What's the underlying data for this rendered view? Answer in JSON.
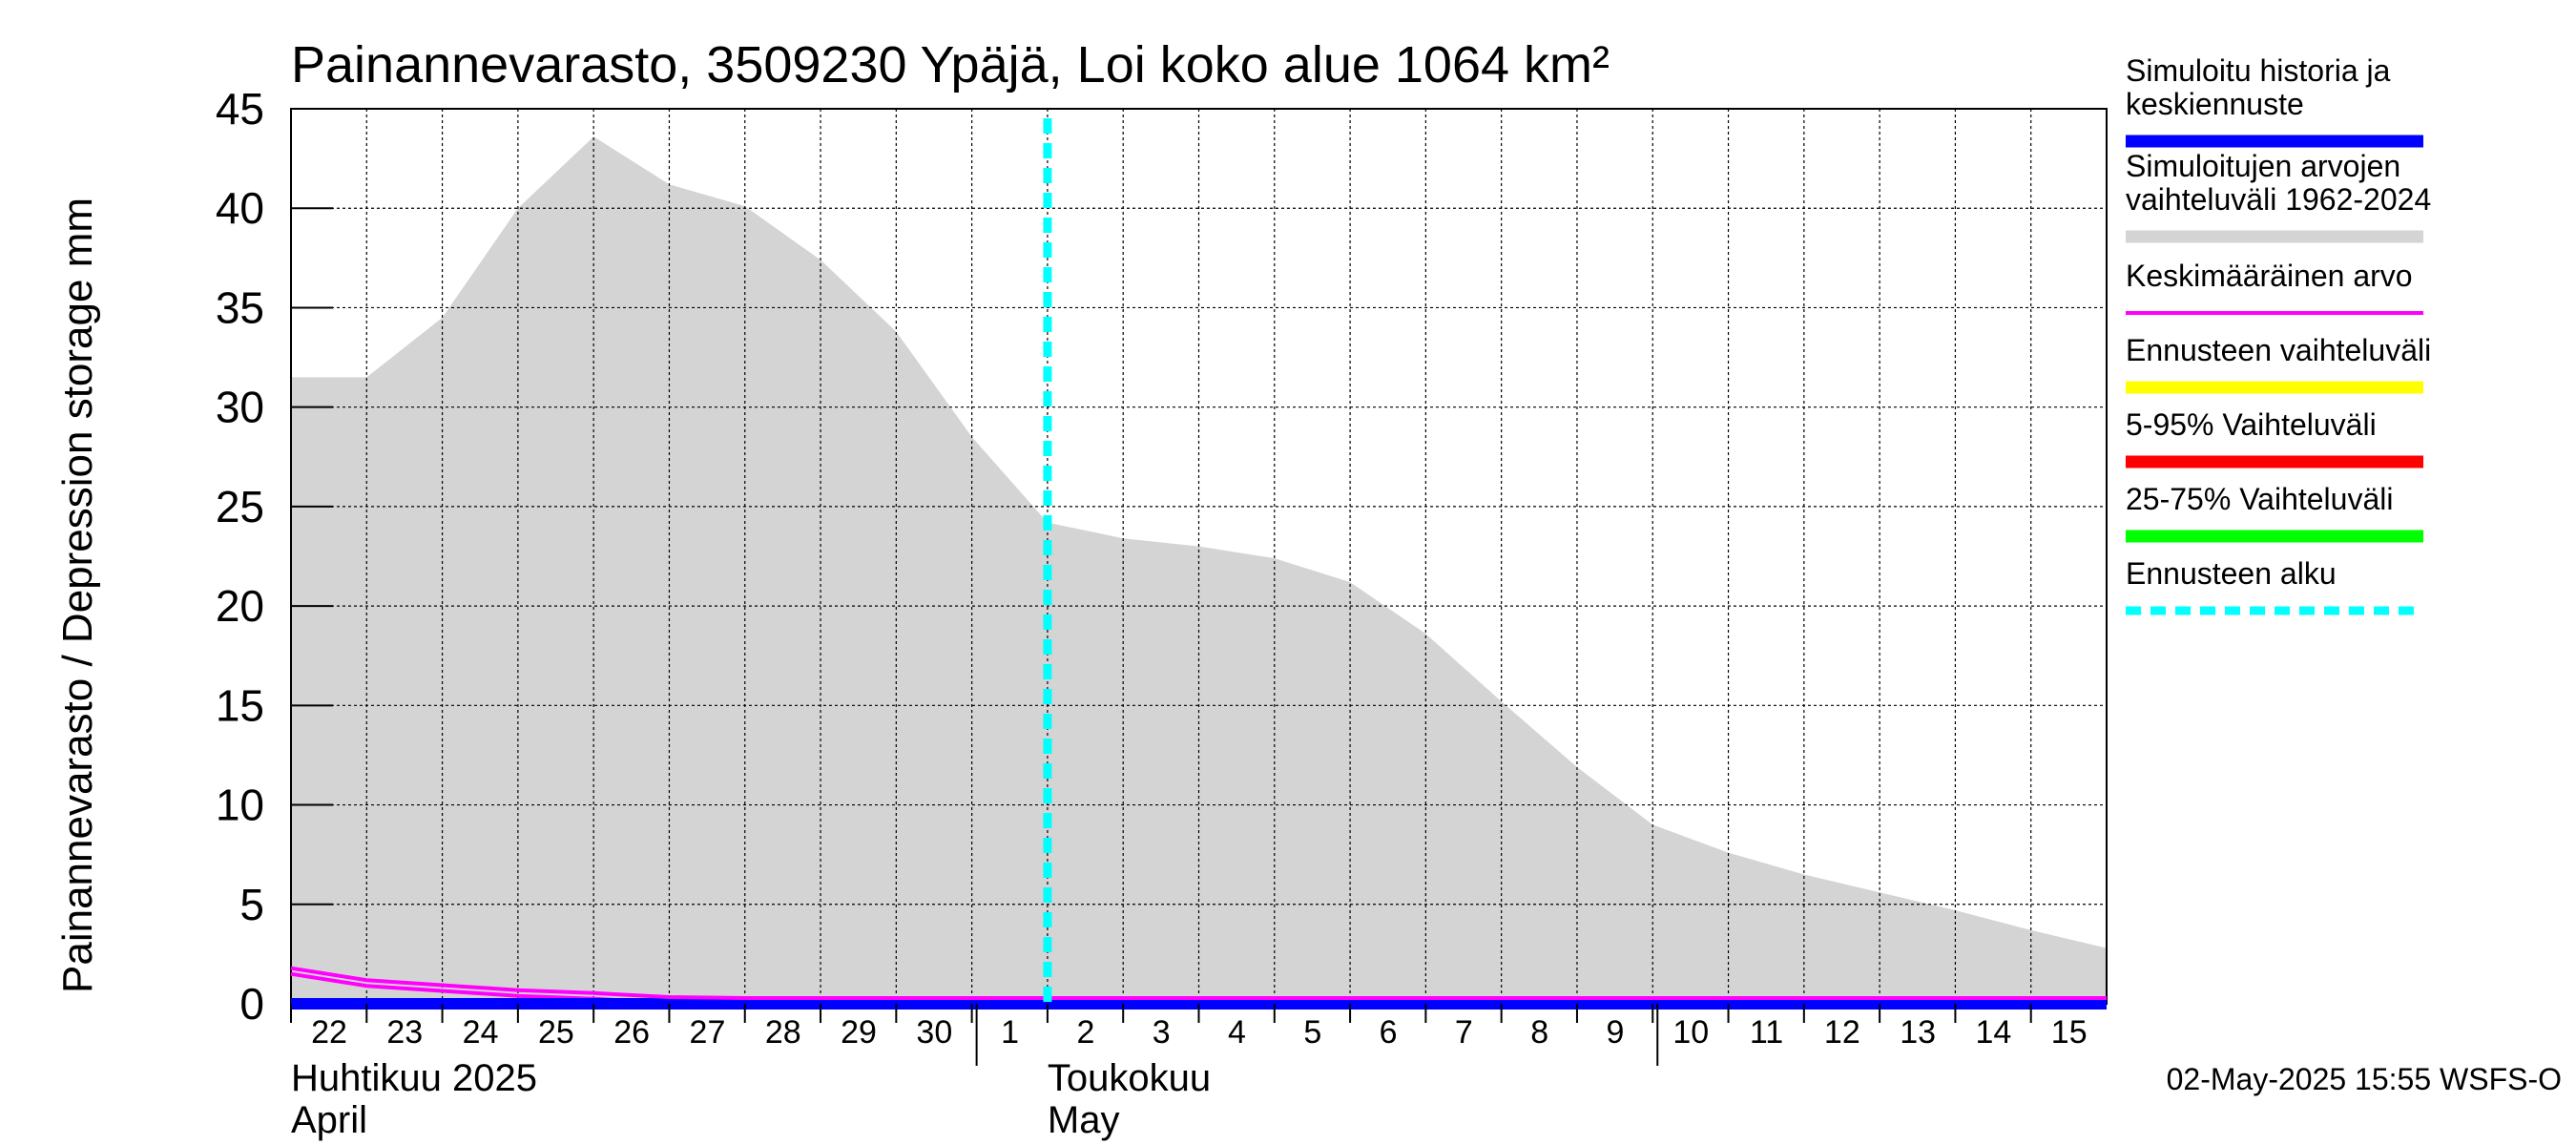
{
  "chart_data": {
    "type": "area",
    "title": "Painannevarasto, 3509230 Ypäjä, Loi koko alue 1064 km²",
    "ylabel": "Painannevarasto / Depression storage    mm",
    "ylim": [
      0,
      45
    ],
    "yticks": [
      0,
      5,
      10,
      15,
      20,
      25,
      30,
      35,
      40,
      45
    ],
    "x_range_days": [
      0,
      24
    ],
    "x_tick_labels": [
      "22",
      "23",
      "24",
      "25",
      "26",
      "27",
      "28",
      "29",
      "30",
      "1",
      "2",
      "3",
      "4",
      "5",
      "6",
      "7",
      "8",
      "9",
      "10",
      "11",
      "12",
      "13",
      "14",
      "15"
    ],
    "month_labels": [
      {
        "line1": "Huhtikuu  2025",
        "line2": "April",
        "day": 0
      },
      {
        "line1": "Toukokuu",
        "line2": "May",
        "day": 10
      }
    ],
    "month_separator_days": [
      9,
      18
    ],
    "grid": true,
    "legend_placement": "right",
    "forecast_start_day": 10.0,
    "series": [
      {
        "name": "Simuloitujen arvojen vaihteluväli 1962-2024",
        "kind": "range",
        "color": "#d4d4d4",
        "x": [
          0,
          1,
          2,
          3,
          4,
          5,
          6,
          7,
          8,
          9,
          10,
          11,
          12,
          13,
          14,
          15,
          16,
          17,
          18,
          19,
          20,
          21,
          22,
          23,
          24
        ],
        "upper": [
          31.5,
          31.5,
          34.5,
          40,
          43.6,
          41.2,
          40.1,
          37.4,
          33.8,
          28.5,
          24.2,
          23.4,
          23,
          22.4,
          21.2,
          18.6,
          15.2,
          11.9,
          9.0,
          7.6,
          6.5,
          5.6,
          4.7,
          3.7,
          2.8
        ],
        "lower": [
          0,
          0,
          0,
          0,
          0,
          0,
          0,
          0,
          0,
          0,
          0,
          0,
          0,
          0,
          0,
          0,
          0,
          0,
          0,
          0,
          0,
          0,
          0,
          0,
          0
        ]
      },
      {
        "name": "Keskimääräinen arvo",
        "kind": "line",
        "color": "#ff00ff",
        "x": [
          0,
          1,
          2,
          3,
          4,
          5,
          6,
          7,
          8,
          9,
          10,
          11,
          12,
          13,
          14,
          15,
          16,
          17,
          18,
          19,
          20,
          21,
          22,
          23,
          24
        ],
        "values": [
          1.5,
          0.9,
          0.65,
          0.4,
          0.25,
          0.05,
          0.0,
          0.0,
          0.0,
          0.0,
          0.0,
          0.0,
          0.0,
          0.0,
          0.0,
          0.0,
          0.0,
          0.0,
          0.0,
          0.0,
          0.0,
          0.0,
          0.0,
          0.0,
          0.0
        ]
      },
      {
        "name": "Simuloitu historia ja keskiennuste",
        "kind": "line",
        "color": "#0000ff",
        "x": [
          0,
          24
        ],
        "values": [
          0,
          0
        ]
      }
    ],
    "legend": [
      {
        "lines": [
          "Simuloitu historia ja",
          "keskiennuste"
        ],
        "color": "#0000ff",
        "style": "solid"
      },
      {
        "lines": [
          "Simuloitujen arvojen",
          "vaihteluväli 1962-2024"
        ],
        "color": "#d4d4d4",
        "style": "solid"
      },
      {
        "lines": [
          "Keskimääräinen arvo"
        ],
        "color": "#ff00ff",
        "style": "thin"
      },
      {
        "lines": [
          "Ennusteen vaihteluväli"
        ],
        "color": "#ffff00",
        "style": "solid"
      },
      {
        "lines": [
          "5-95% Vaihteluväli"
        ],
        "color": "#ff0000",
        "style": "solid"
      },
      {
        "lines": [
          "25-75% Vaihteluväli"
        ],
        "color": "#00ff00",
        "style": "solid"
      },
      {
        "lines": [
          "Ennusteen alku"
        ],
        "color": "#00ffff",
        "style": "dashed"
      }
    ],
    "footer": "02-May-2025 15:55 WSFS-O"
  }
}
